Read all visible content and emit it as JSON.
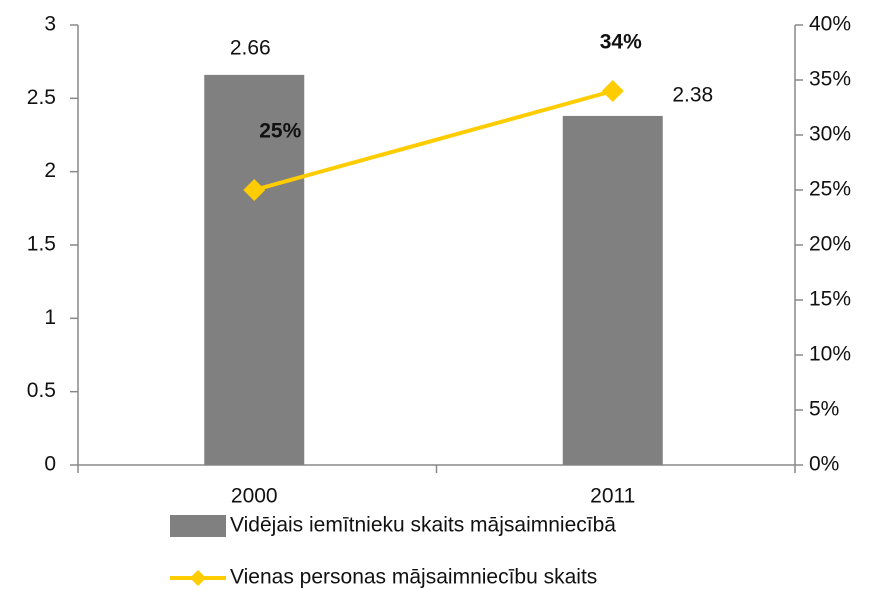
{
  "chart_data": {
    "type": "combo",
    "categories": [
      "2000",
      "2011"
    ],
    "series": [
      {
        "name": "Vidējais iemītnieku skaits mājsaimniecībā",
        "type": "bar",
        "color": "#808080",
        "values": [
          2.66,
          2.38
        ]
      },
      {
        "name": "Vienas personas mājsaimniecību skaits",
        "type": "line",
        "axis": "y2",
        "color": "#ffcc00",
        "values": [
          25,
          34
        ],
        "value_labels": [
          "25%",
          "34%"
        ]
      }
    ],
    "ylim": [
      0,
      3
    ],
    "yticks": [
      0,
      0.5,
      1,
      1.5,
      2,
      2.5,
      3
    ],
    "y2lim": [
      0,
      40
    ],
    "y2ticks": [
      {
        "value": 0,
        "label": "0%"
      },
      {
        "value": 5,
        "label": "5%"
      },
      {
        "value": 10,
        "label": "10%"
      },
      {
        "value": 15,
        "label": "15%"
      },
      {
        "value": 20,
        "label": "20%"
      },
      {
        "value": 25,
        "label": "25%"
      },
      {
        "value": 30,
        "label": "30%"
      },
      {
        "value": 35,
        "label": "35%"
      },
      {
        "value": 40,
        "label": "40%"
      }
    ],
    "legend": "bottom"
  }
}
